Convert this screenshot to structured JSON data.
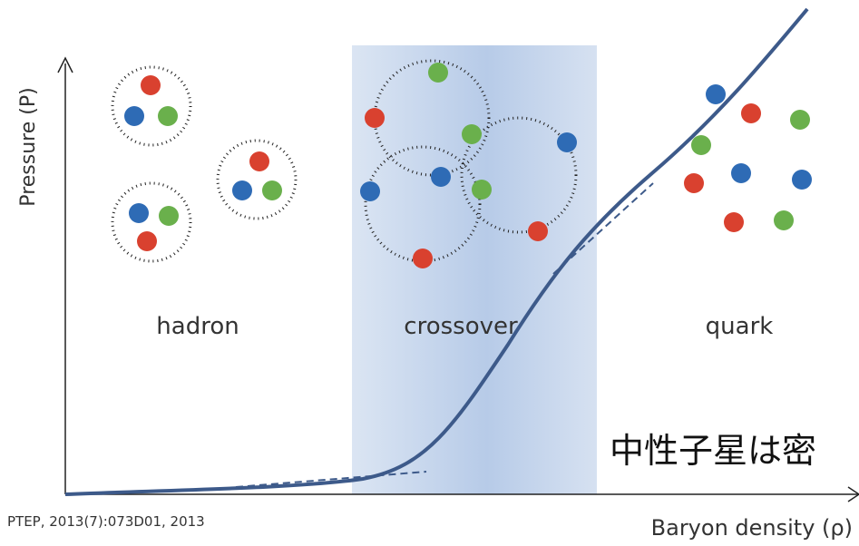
{
  "axes": {
    "y_label": "Pressure (P)",
    "x_label": "Baryon density (ρ)"
  },
  "phases": {
    "hadron": "hadron",
    "crossover": "crossover",
    "quark": "quark"
  },
  "overlay_text": "中性子星は密",
  "citation": "PTEP, 2013(7):073D01, 2013"
}
